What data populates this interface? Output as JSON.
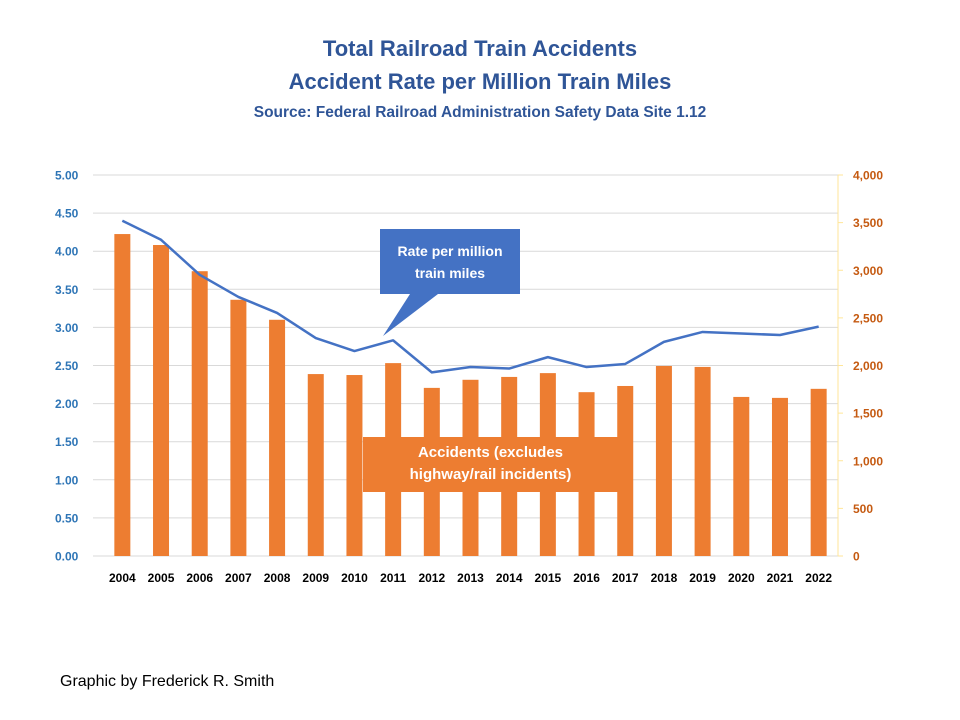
{
  "chart_data": {
    "type": "bar+line",
    "title": "Total Railroad Train Accidents",
    "subtitle": "Accident Rate per Million Train Miles",
    "source": "Source: Federal Railroad Administration  Safety Data Site 1.12",
    "categories": [
      "2004",
      "2005",
      "2006",
      "2007",
      "2008",
      "2009",
      "2010",
      "2011",
      "2012",
      "2013",
      "2014",
      "2015",
      "2016",
      "2017",
      "2018",
      "2019",
      "2020",
      "2021",
      "2022"
    ],
    "series": [
      {
        "name": "Accidents (excludes highway/rail incidents)",
        "type": "bar",
        "axis": "right",
        "color": "#ED7D31",
        "values": [
          3380,
          3265,
          2990,
          2690,
          2480,
          1910,
          1900,
          2025,
          1765,
          1850,
          1880,
          1920,
          1720,
          1785,
          1995,
          1985,
          1670,
          1660,
          1755
        ]
      },
      {
        "name": "Rate per million train miles",
        "type": "line",
        "axis": "left",
        "color": "#4472C4",
        "values": [
          4.4,
          4.15,
          3.69,
          3.4,
          3.19,
          2.86,
          2.69,
          2.83,
          2.41,
          2.48,
          2.46,
          2.61,
          2.48,
          2.52,
          2.81,
          2.94,
          2.92,
          2.9,
          3.01
        ]
      }
    ],
    "y_left": {
      "range": [
        0,
        5
      ],
      "ticks": [
        "0.00",
        "0.50",
        "1.00",
        "1.50",
        "2.00",
        "2.50",
        "3.00",
        "3.50",
        "4.00",
        "4.50",
        "5.00"
      ],
      "color": "#2E75B6"
    },
    "y_right": {
      "range": [
        0,
        4000
      ],
      "ticks": [
        "0",
        "500",
        "1,000",
        "1,500",
        "2,000",
        "2,500",
        "3,000",
        "3,500",
        "4,000"
      ],
      "color": "#C55A11"
    },
    "grid": true,
    "annotations": {
      "rate_label": [
        "Rate per million",
        "train miles"
      ],
      "accidents_label": [
        "Accidents (excludes",
        "highway/rail incidents)"
      ]
    }
  },
  "footer": "Graphic by Frederick R. Smith"
}
